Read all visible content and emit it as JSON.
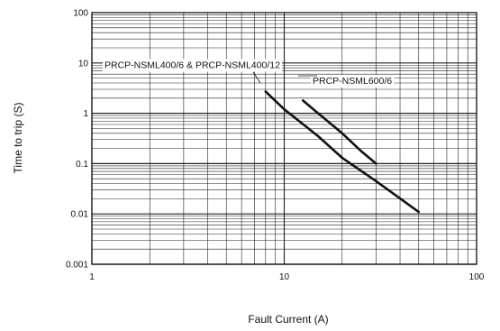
{
  "chart_data": {
    "type": "line",
    "xlabel": "Fault Current (A)",
    "ylabel": "Time to trip (S)",
    "x_scale": "log",
    "y_scale": "log",
    "xlim": [
      1,
      100
    ],
    "ylim": [
      0.001,
      100
    ],
    "x_ticks": [
      {
        "value": 1,
        "label": "1"
      },
      {
        "value": 10,
        "label": "10"
      },
      {
        "value": 100,
        "label": "100"
      }
    ],
    "y_ticks": [
      {
        "value": 0.001,
        "label": "0.001"
      },
      {
        "value": 0.01,
        "label": "0.01"
      },
      {
        "value": 0.1,
        "label": "0.1"
      },
      {
        "value": 1,
        "label": "1"
      },
      {
        "value": 10,
        "label": "10"
      },
      {
        "value": 100,
        "label": "100"
      }
    ],
    "grid": true,
    "series": [
      {
        "name": "PRCP-NSML400/6 & PRCP-NSML400/12",
        "x": [
          8,
          10,
          15,
          20,
          30,
          50
        ],
        "y": [
          2.7,
          1.2,
          0.35,
          0.13,
          0.045,
          0.011
        ]
      },
      {
        "name": "PRCP-NSML600/6",
        "x": [
          12.5,
          15,
          20,
          25,
          30
        ],
        "y": [
          1.8,
          1.0,
          0.4,
          0.18,
          0.1
        ]
      }
    ],
    "line_color": "#111111"
  }
}
